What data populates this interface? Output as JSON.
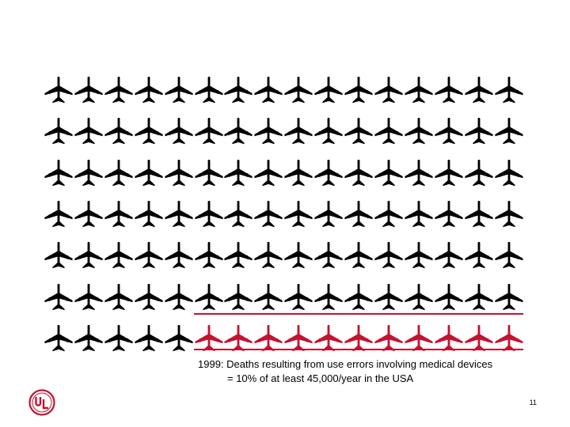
{
  "pictogram": {
    "rows": 7,
    "columns": 16,
    "total_icons": 112,
    "highlighted_icons": 11,
    "icon": "airplane-icon",
    "colors": {
      "normal": "#000000",
      "highlighted": "#c41230"
    }
  },
  "caption": {
    "line1": "1999: Deaths resulting from use errors involving medical devices",
    "line2": "= 10% of at least 45,000/year in the USA"
  },
  "logo": {
    "text": "UL",
    "color": "#c41230"
  },
  "page_number": "11"
}
